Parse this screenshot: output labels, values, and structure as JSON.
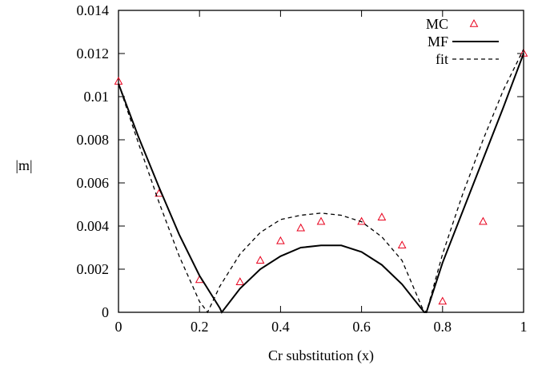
{
  "chart_data": {
    "type": "scatter",
    "xlabel": "Cr substitution (x)",
    "ylabel": "|m|",
    "xlim": [
      0,
      1
    ],
    "ylim": [
      0,
      0.014
    ],
    "xticks": [
      "0",
      "0.2",
      "0.4",
      "0.6",
      "0.8",
      "1"
    ],
    "yticks": [
      "0",
      "0.002",
      "0.004",
      "0.006",
      "0.008",
      "0.01",
      "0.012",
      "0.014"
    ],
    "grid": false,
    "legend_position": "top-right",
    "colors": {
      "mc": "#e8001c",
      "mf": "#000000",
      "fit": "#000000"
    },
    "series": [
      {
        "name": "MC",
        "style": "triangle-markers",
        "x": [
          0.0,
          0.1,
          0.2,
          0.3,
          0.35,
          0.4,
          0.45,
          0.5,
          0.6,
          0.65,
          0.7,
          0.8,
          0.9,
          1.0
        ],
        "y": [
          0.0107,
          0.0055,
          0.0015,
          0.0014,
          0.0024,
          0.0033,
          0.0039,
          0.0042,
          0.0042,
          0.0044,
          0.0031,
          0.0005,
          0.0042,
          0.012
        ]
      },
      {
        "name": "MF",
        "style": "solid-line",
        "x": [
          0.0,
          0.05,
          0.1,
          0.15,
          0.2,
          0.25,
          0.255,
          0.3,
          0.35,
          0.4,
          0.45,
          0.5,
          0.55,
          0.6,
          0.65,
          0.7,
          0.755,
          0.76,
          0.8,
          0.85,
          0.9,
          0.95,
          1.0
        ],
        "y": [
          0.0106,
          0.0081,
          0.0058,
          0.0036,
          0.0017,
          0.0002,
          0.0,
          0.0011,
          0.002,
          0.0026,
          0.003,
          0.0031,
          0.0031,
          0.0028,
          0.0022,
          0.0013,
          0.0,
          0.0,
          0.0023,
          0.0047,
          0.0071,
          0.0095,
          0.012
        ]
      },
      {
        "name": "fit",
        "style": "dashed-line",
        "x": [
          0.0,
          0.05,
          0.1,
          0.15,
          0.2,
          0.22,
          0.25,
          0.3,
          0.35,
          0.4,
          0.45,
          0.5,
          0.55,
          0.6,
          0.65,
          0.7,
          0.75,
          0.76,
          0.8,
          0.85,
          0.9,
          0.95,
          1.0
        ],
        "y": [
          0.0106,
          0.0078,
          0.0051,
          0.0026,
          0.0005,
          0.0,
          0.0012,
          0.0027,
          0.0037,
          0.0043,
          0.0045,
          0.0046,
          0.0045,
          0.0042,
          0.0035,
          0.0024,
          0.0002,
          0.0,
          0.0027,
          0.0055,
          0.008,
          0.0103,
          0.0122
        ]
      }
    ]
  }
}
